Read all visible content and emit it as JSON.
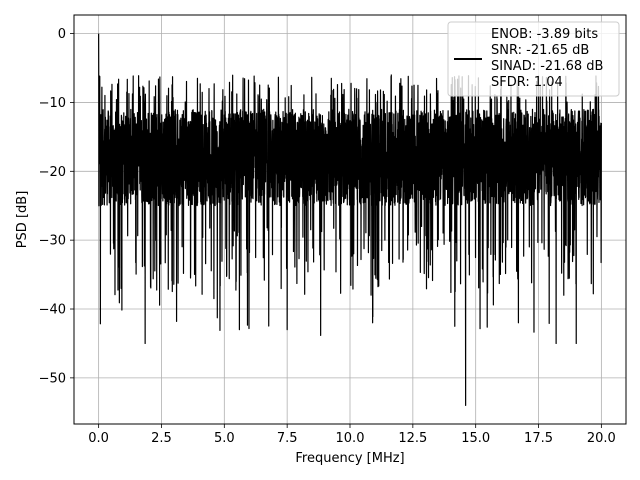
{
  "chart_data": {
    "type": "line",
    "title": "",
    "xlabel": "Frequency [MHz]",
    "ylabel": "PSD [dB]",
    "xlim": [
      -0.98,
      20.98
    ],
    "ylim": [
      -56.7,
      2.7
    ],
    "xticks": [
      0.0,
      2.5,
      5.0,
      7.5,
      10.0,
      12.5,
      15.0,
      17.5,
      20.0
    ],
    "xtick_labels": [
      "0.0",
      "2.5",
      "5.0",
      "7.5",
      "10.0",
      "12.5",
      "15.0",
      "17.5",
      "20.0"
    ],
    "yticks": [
      0,
      -10,
      -20,
      -30,
      -40,
      -50
    ],
    "ytick_labels": [
      "0",
      "−10",
      "−20",
      "−30",
      "−40",
      "−50"
    ],
    "grid": true,
    "legend_position": "top-right",
    "series": [
      {
        "name": "ENOB: -3.89 bits\nSNR: -21.65 dB\nSINAD: -21.68 dB\nSFDR: 1.04",
        "color": "#000000",
        "description_points": {
          "x_range": [
            0.0,
            20.0
          ],
          "typical_band_db": [
            -25,
            -10
          ],
          "peak_db": 0.0,
          "peak_freq_mhz": 0.0,
          "min_db": -54.0,
          "min_freq_mhz": 14.6
        }
      }
    ],
    "legend_lines": [
      "ENOB: -3.89 bits",
      "SNR: -21.65 dB",
      "SINAD: -21.68 dB",
      "SFDR: 1.04"
    ]
  },
  "colors": {
    "line": "#000000",
    "grid": "#b0b0b0",
    "legend_border": "#cccccc"
  }
}
